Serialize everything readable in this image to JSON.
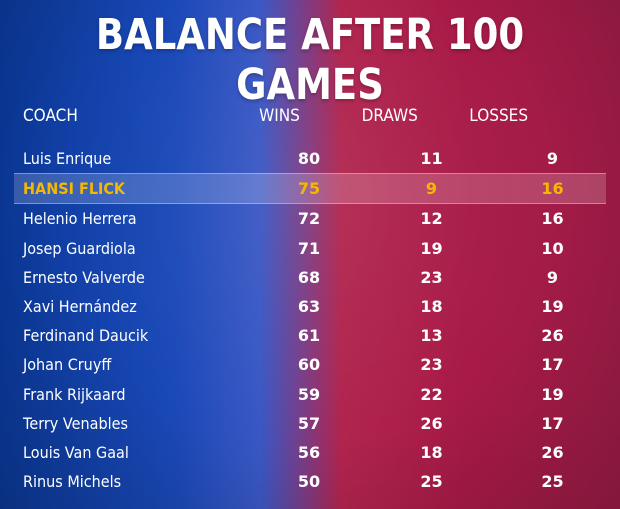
{
  "title": "BALANCE AFTER 100 GAMES",
  "columns": {
    "coach": "COACH",
    "wins": "WINS",
    "draws": "DRAWS",
    "losses": "LOSSES"
  },
  "highlight_color": "#f5b800",
  "rows": [
    {
      "coach": "Luis Enrique",
      "wins": "80",
      "draws": "11",
      "losses": "9"
    },
    {
      "coach": "HANSI FLICK",
      "wins": "75",
      "draws": "9",
      "losses": "16"
    },
    {
      "coach": "Helenio Herrera",
      "wins": "72",
      "draws": "12",
      "losses": "16"
    },
    {
      "coach": "Josep Guardiola",
      "wins": "71",
      "draws": "19",
      "losses": "10"
    },
    {
      "coach": "Ernesto Valverde",
      "wins": "68",
      "draws": "23",
      "losses": "9"
    },
    {
      "coach": "Xavi Hernández",
      "wins": "63",
      "draws": "18",
      "losses": "19"
    },
    {
      "coach": "Ferdinand Daucik",
      "wins": "61",
      "draws": "13",
      "losses": "26"
    },
    {
      "coach": "Johan Cruyff",
      "wins": "60",
      "draws": "23",
      "losses": "17"
    },
    {
      "coach": "Frank Rijkaard",
      "wins": "59",
      "draws": "22",
      "losses": "19"
    },
    {
      "coach": "Terry Venables",
      "wins": "57",
      "draws": "26",
      "losses": "17"
    },
    {
      "coach": "Louis Van Gaal",
      "wins": "56",
      "draws": "18",
      "losses": "26"
    },
    {
      "coach": "Rinus Michels",
      "wins": "50",
      "draws": "25",
      "losses": "25"
    }
  ]
}
